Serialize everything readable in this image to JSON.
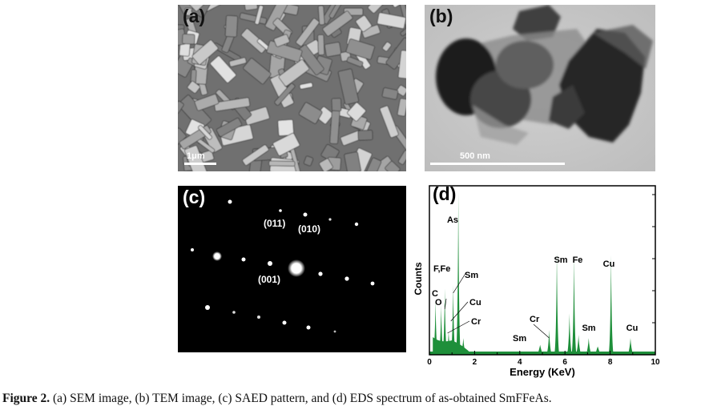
{
  "panels": {
    "a": {
      "label": "(a)",
      "scale_bar": "1μm"
    },
    "b": {
      "label": "(b)",
      "scale_bar": "500 nm"
    },
    "c": {
      "label": "(c)",
      "spot_labels": [
        "(011)",
        "(010)",
        "(001)"
      ]
    },
    "d": {
      "label": "(d)"
    }
  },
  "caption": {
    "prefix": "Figure 2.",
    "text": " (a) SEM image, (b) TEM image, (c) SAED pattern, and (d) EDS spectrum of as-obtained SmFFeAs."
  },
  "chart_data": {
    "type": "area",
    "xlabel": "Energy (KeV)",
    "ylabel": "Counts",
    "xlim": [
      0,
      10
    ],
    "xticks": [
      "0",
      "2",
      "4",
      "6",
      "8",
      "10"
    ],
    "fill_color": "#1e8f3a",
    "peaks": [
      {
        "x": 0.27,
        "h": 0.33
      },
      {
        "x": 0.52,
        "h": 0.3
      },
      {
        "x": 0.68,
        "h": 0.4
      },
      {
        "x": 0.85,
        "h": 0.14
      },
      {
        "x": 1.05,
        "h": 0.42
      },
      {
        "x": 1.28,
        "h": 0.98
      },
      {
        "x": 1.5,
        "h": 0.1
      },
      {
        "x": 4.9,
        "h": 0.06
      },
      {
        "x": 5.3,
        "h": 0.15
      },
      {
        "x": 5.64,
        "h": 0.62
      },
      {
        "x": 6.2,
        "h": 0.25
      },
      {
        "x": 6.4,
        "h": 0.6
      },
      {
        "x": 6.6,
        "h": 0.12
      },
      {
        "x": 7.05,
        "h": 0.1
      },
      {
        "x": 7.45,
        "h": 0.05
      },
      {
        "x": 8.04,
        "h": 0.6
      },
      {
        "x": 8.9,
        "h": 0.1
      }
    ],
    "annotations": [
      {
        "text": "As",
        "x": 1.28
      },
      {
        "text": "F,Fe",
        "x": 0.68
      },
      {
        "text": "Sm",
        "x": 1.05
      },
      {
        "text": "C",
        "x": 0.27
      },
      {
        "text": "O",
        "x": 0.52
      },
      {
        "text": "Cu",
        "x": 0.95
      },
      {
        "text": "Cr",
        "x": 0.8
      },
      {
        "text": "Cr",
        "x": 5.3
      },
      {
        "text": "Sm",
        "x": 4.9
      },
      {
        "text": "Sm",
        "x": 5.64
      },
      {
        "text": "Fe",
        "x": 6.4
      },
      {
        "text": "Sm",
        "x": 7.05
      },
      {
        "text": "Cu",
        "x": 8.04
      },
      {
        "text": "Cu",
        "x": 8.9
      }
    ]
  }
}
